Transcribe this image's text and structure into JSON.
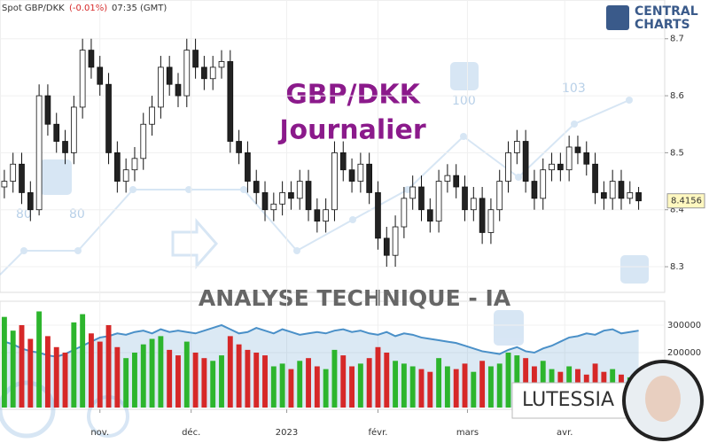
{
  "chart_data": {
    "type": "candlestick",
    "header": {
      "symbol": "Spot GBP/DKK",
      "change": "(-0.01%)",
      "time": "07:35 (GMT)"
    },
    "watermark": {
      "title": "GBP/DKK",
      "subtitle": "Journalier",
      "banner": "ANALYSE TECHNIQUE - IA",
      "brand": "LUTESSIA",
      "logo": [
        "CENTRAL",
        "CHARTS"
      ],
      "levels": [
        "80",
        "80",
        "100",
        "103"
      ]
    },
    "up_color": "#ffffff",
    "down_color": "#222222",
    "outline": "#111111",
    "xlim": [
      -0.5,
      76
    ],
    "xticks": [
      {
        "value": 11,
        "label": "nov."
      },
      {
        "value": 21.5,
        "label": "déc."
      },
      {
        "value": 32.5,
        "label": "2023"
      },
      {
        "value": 43,
        "label": "févr."
      },
      {
        "value": 53.3,
        "label": "mars"
      },
      {
        "value": 64.5,
        "label": "avr."
      }
    ],
    "ylim": [
      8.255,
      8.768
    ],
    "yticks": [
      8.3,
      8.4,
      8.5,
      8.6,
      8.7
    ],
    "open": [
      8.44,
      8.45,
      8.48,
      8.43,
      8.4,
      8.6,
      8.55,
      8.52,
      8.5,
      8.58,
      8.68,
      8.65,
      8.62,
      8.5,
      8.45,
      8.47,
      8.49,
      8.55,
      8.58,
      8.65,
      8.62,
      8.6,
      8.68,
      8.65,
      8.63,
      8.65,
      8.66,
      8.52,
      8.5,
      8.45,
      8.43,
      8.4,
      8.41,
      8.43,
      8.42,
      8.45,
      8.4,
      8.38,
      8.4,
      8.5,
      8.47,
      8.45,
      8.48,
      8.43,
      8.35,
      8.32,
      8.37,
      8.42,
      8.44,
      8.4,
      8.38,
      8.45,
      8.46,
      8.44,
      8.4,
      8.42,
      8.36,
      8.4,
      8.45,
      8.5,
      8.52,
      8.45,
      8.42,
      8.47,
      8.48,
      8.47,
      8.51,
      8.5,
      8.48,
      8.43,
      8.42,
      8.45,
      8.42,
      8.43
    ],
    "high": [
      8.47,
      8.5,
      8.5,
      8.45,
      8.62,
      8.62,
      8.57,
      8.54,
      8.6,
      8.7,
      8.7,
      8.67,
      8.64,
      8.52,
      8.49,
      8.51,
      8.57,
      8.6,
      8.67,
      8.67,
      8.64,
      8.7,
      8.7,
      8.67,
      8.67,
      8.68,
      8.68,
      8.54,
      8.52,
      8.47,
      8.45,
      8.43,
      8.45,
      8.45,
      8.47,
      8.47,
      8.42,
      8.42,
      8.52,
      8.52,
      8.49,
      8.5,
      8.5,
      8.45,
      8.37,
      8.39,
      8.44,
      8.46,
      8.46,
      8.42,
      8.47,
      8.48,
      8.48,
      8.46,
      8.44,
      8.44,
      8.42,
      8.47,
      8.52,
      8.54,
      8.54,
      8.47,
      8.49,
      8.5,
      8.5,
      8.53,
      8.53,
      8.52,
      8.5,
      8.45,
      8.47,
      8.47,
      8.45,
      8.44
    ],
    "low": [
      8.42,
      8.43,
      8.41,
      8.38,
      8.39,
      8.53,
      8.5,
      8.48,
      8.48,
      8.56,
      8.63,
      8.6,
      8.48,
      8.43,
      8.43,
      8.45,
      8.47,
      8.53,
      8.56,
      8.6,
      8.58,
      8.58,
      8.63,
      8.61,
      8.61,
      8.63,
      8.5,
      8.48,
      8.43,
      8.41,
      8.38,
      8.38,
      8.39,
      8.4,
      8.4,
      8.38,
      8.36,
      8.36,
      8.38,
      8.45,
      8.43,
      8.43,
      8.41,
      8.33,
      8.3,
      8.3,
      8.35,
      8.4,
      8.38,
      8.36,
      8.36,
      8.43,
      8.42,
      8.38,
      8.38,
      8.34,
      8.34,
      8.38,
      8.43,
      8.48,
      8.43,
      8.4,
      8.4,
      8.45,
      8.45,
      8.45,
      8.48,
      8.46,
      8.41,
      8.4,
      8.4,
      8.4,
      8.41,
      8.4
    ],
    "close": [
      8.45,
      8.48,
      8.43,
      8.4,
      8.6,
      8.55,
      8.52,
      8.5,
      8.58,
      8.68,
      8.65,
      8.62,
      8.5,
      8.45,
      8.47,
      8.49,
      8.55,
      8.58,
      8.65,
      8.62,
      8.6,
      8.68,
      8.65,
      8.63,
      8.65,
      8.66,
      8.52,
      8.5,
      8.45,
      8.43,
      8.4,
      8.41,
      8.43,
      8.42,
      8.45,
      8.4,
      8.38,
      8.4,
      8.5,
      8.47,
      8.45,
      8.48,
      8.43,
      8.35,
      8.32,
      8.37,
      8.42,
      8.44,
      8.4,
      8.38,
      8.45,
      8.46,
      8.44,
      8.4,
      8.42,
      8.36,
      8.4,
      8.45,
      8.5,
      8.52,
      8.45,
      8.42,
      8.47,
      8.48,
      8.47,
      8.51,
      8.5,
      8.48,
      8.43,
      8.42,
      8.45,
      8.42,
      8.43,
      8.4156
    ],
    "volume": {
      "up_color": "#2db52d",
      "down_color": "#d62828",
      "line_color": "#4a90c8",
      "ylim": [
        0,
        387000
      ],
      "yticks": [
        200000,
        300000
      ],
      "values": [
        330000,
        280000,
        300000,
        250000,
        350000,
        260000,
        220000,
        200000,
        310000,
        340000,
        270000,
        240000,
        300000,
        220000,
        180000,
        200000,
        230000,
        250000,
        260000,
        210000,
        190000,
        240000,
        200000,
        180000,
        170000,
        190000,
        260000,
        230000,
        210000,
        200000,
        190000,
        150000,
        160000,
        140000,
        170000,
        180000,
        150000,
        140000,
        210000,
        190000,
        150000,
        160000,
        180000,
        220000,
        200000,
        170000,
        160000,
        150000,
        140000,
        130000,
        180000,
        150000,
        140000,
        160000,
        130000,
        170000,
        150000,
        160000,
        200000,
        190000,
        180000,
        150000,
        170000,
        140000,
        130000,
        150000,
        140000,
        120000,
        160000,
        130000,
        140000,
        120000,
        110000,
        100000
      ],
      "line": [
        240000,
        230000,
        215000,
        205000,
        200000,
        190000,
        185000,
        195000,
        210000,
        225000,
        240000,
        255000,
        260000,
        270000,
        265000,
        275000,
        280000,
        270000,
        285000,
        275000,
        280000,
        275000,
        270000,
        280000,
        290000,
        300000,
        285000,
        270000,
        275000,
        290000,
        280000,
        270000,
        285000,
        275000,
        265000,
        270000,
        275000,
        270000,
        280000,
        285000,
        275000,
        280000,
        270000,
        265000,
        275000,
        260000,
        270000,
        265000,
        255000,
        250000,
        245000,
        240000,
        235000,
        225000,
        215000,
        205000,
        200000,
        195000,
        210000,
        220000,
        205000,
        200000,
        215000,
        225000,
        240000,
        255000,
        260000,
        270000,
        265000,
        280000,
        285000,
        270000,
        275000,
        280000
      ]
    }
  }
}
